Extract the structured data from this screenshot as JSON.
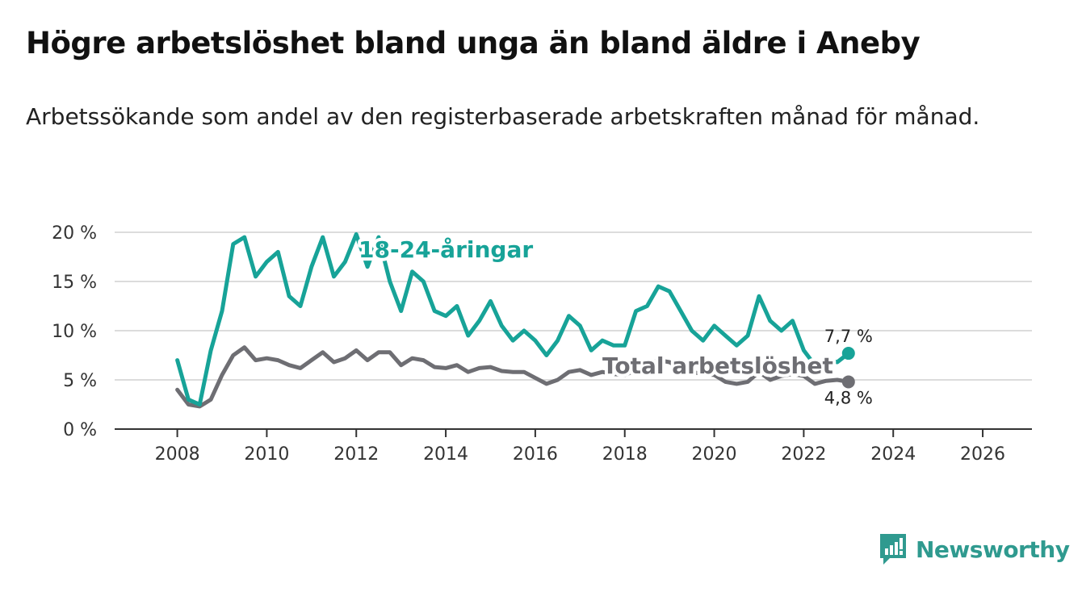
{
  "title": "Högre arbetslöshet bland unga än bland äldre i Aneby",
  "subtitle": "Arbetssökande som andel av den registerbaserade arbetskraften månad för månad.",
  "brand": {
    "name": "Newsworthy",
    "color": "#2f9a8f"
  },
  "colors": {
    "youth": "#17a398",
    "total": "#6e6e73",
    "grid": "#dcdcdc",
    "axis": "#333333"
  },
  "chart_data": {
    "type": "line",
    "x_start": 2008.0,
    "x_step": 0.25,
    "xlim": [
      2006.6,
      2027.1
    ],
    "ylim": [
      0,
      20
    ],
    "y_ticks": [
      0,
      5,
      10,
      15,
      20
    ],
    "y_tick_labels": [
      "0 %",
      "5 %",
      "10 %",
      "15 %",
      "20 %"
    ],
    "x_ticks": [
      2008,
      2010,
      2012,
      2014,
      2016,
      2018,
      2020,
      2022,
      2024,
      2026
    ],
    "x_tick_labels": [
      "2008",
      "2010",
      "2012",
      "2014",
      "2016",
      "2018",
      "2020",
      "2022",
      "2024",
      "2026"
    ],
    "grid": true,
    "series": [
      {
        "name": "18-24-åringar",
        "label": "18-24-åringar",
        "end_label": "7,7 %",
        "end_value": 7.7,
        "values": [
          7.0,
          3.0,
          2.5,
          8.0,
          12.0,
          18.8,
          19.5,
          15.5,
          17.0,
          18.0,
          13.5,
          12.5,
          16.5,
          19.5,
          15.5,
          17.0,
          19.8,
          16.5,
          19.5,
          15.0,
          12.0,
          16.0,
          15.0,
          12.0,
          11.5,
          12.5,
          9.5,
          11.0,
          13.0,
          10.5,
          9.0,
          10.0,
          9.0,
          7.5,
          9.0,
          11.5,
          10.5,
          8.0,
          9.0,
          8.5,
          8.5,
          12.0,
          12.5,
          14.5,
          14.0,
          12.0,
          10.0,
          9.0,
          10.5,
          9.5,
          8.5,
          9.5,
          13.5,
          11.0,
          10.0,
          11.0,
          8.0,
          6.5,
          7.0,
          6.8,
          7.7
        ]
      },
      {
        "name": "Total arbetslöshet",
        "label": "Total arbetslöshet",
        "end_label": "4,8 %",
        "end_value": 4.8,
        "values": [
          4.0,
          2.5,
          2.3,
          3.0,
          5.5,
          7.5,
          8.3,
          7.0,
          7.2,
          7.0,
          6.5,
          6.2,
          7.0,
          7.8,
          6.8,
          7.2,
          8.0,
          7.0,
          7.8,
          7.8,
          6.5,
          7.2,
          7.0,
          6.3,
          6.2,
          6.5,
          5.8,
          6.2,
          6.3,
          5.9,
          5.8,
          5.8,
          5.2,
          4.6,
          5.0,
          5.8,
          6.0,
          5.5,
          5.8,
          5.6,
          5.5,
          6.0,
          6.5,
          7.0,
          6.8,
          6.2,
          5.8,
          5.6,
          5.5,
          4.8,
          4.6,
          4.8,
          5.8,
          5.0,
          5.4,
          5.6,
          5.4,
          4.6,
          4.9,
          5.0,
          4.8
        ]
      }
    ]
  }
}
